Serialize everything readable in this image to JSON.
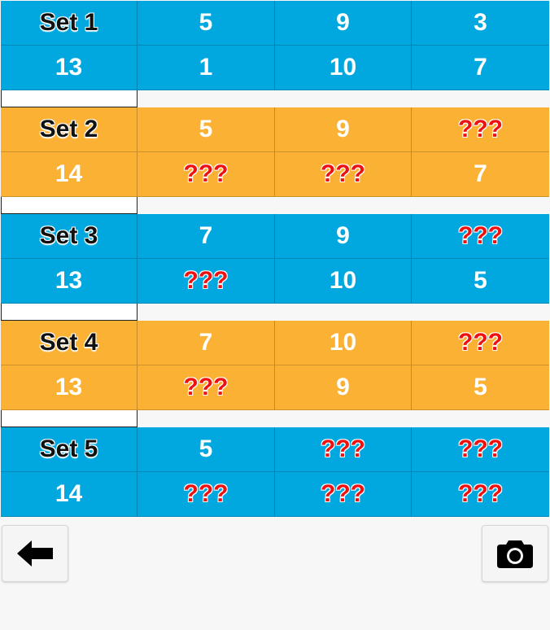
{
  "sets": [
    {
      "color": "#01a8df",
      "theme": "blue",
      "rows": [
        [
          {
            "text": "Set 1",
            "kind": "label"
          },
          {
            "text": "5"
          },
          {
            "text": "9"
          },
          {
            "text": "3"
          }
        ],
        [
          {
            "text": "13"
          },
          {
            "text": "1"
          },
          {
            "text": "10"
          },
          {
            "text": "7"
          }
        ]
      ]
    },
    {
      "color": "#fbb234",
      "theme": "orange",
      "rows": [
        [
          {
            "text": "Set 2",
            "kind": "label"
          },
          {
            "text": "5"
          },
          {
            "text": "9"
          },
          {
            "text": "???",
            "kind": "unknown"
          }
        ],
        [
          {
            "text": "14"
          },
          {
            "text": "???",
            "kind": "unknown"
          },
          {
            "text": "???",
            "kind": "unknown"
          },
          {
            "text": "7"
          }
        ]
      ]
    },
    {
      "color": "#01a8df",
      "theme": "blue",
      "rows": [
        [
          {
            "text": "Set 3",
            "kind": "label"
          },
          {
            "text": "7"
          },
          {
            "text": "9"
          },
          {
            "text": "???",
            "kind": "unknown"
          }
        ],
        [
          {
            "text": "13"
          },
          {
            "text": "???",
            "kind": "unknown"
          },
          {
            "text": "10"
          },
          {
            "text": "5"
          }
        ]
      ]
    },
    {
      "color": "#fbb234",
      "theme": "orange",
      "rows": [
        [
          {
            "text": "Set 4",
            "kind": "label"
          },
          {
            "text": "7"
          },
          {
            "text": "10"
          },
          {
            "text": "???",
            "kind": "unknown"
          }
        ],
        [
          {
            "text": "13"
          },
          {
            "text": "???",
            "kind": "unknown"
          },
          {
            "text": "9"
          },
          {
            "text": "5"
          }
        ]
      ]
    },
    {
      "color": "#01a8df",
      "theme": "blue",
      "rows": [
        [
          {
            "text": "Set 5",
            "kind": "label"
          },
          {
            "text": "5"
          },
          {
            "text": "???",
            "kind": "unknown"
          },
          {
            "text": "???",
            "kind": "unknown"
          }
        ],
        [
          {
            "text": "14"
          },
          {
            "text": "???",
            "kind": "unknown"
          },
          {
            "text": "???",
            "kind": "unknown"
          },
          {
            "text": "???",
            "kind": "unknown"
          }
        ]
      ]
    }
  ],
  "toolbar": {
    "back_icon": "arrow-left-icon",
    "camera_icon": "camera-icon"
  },
  "colors": {
    "blue": "#01a8df",
    "orange": "#fbb234",
    "unknown_text": "#ee1111",
    "background": "#f7f7f7"
  }
}
